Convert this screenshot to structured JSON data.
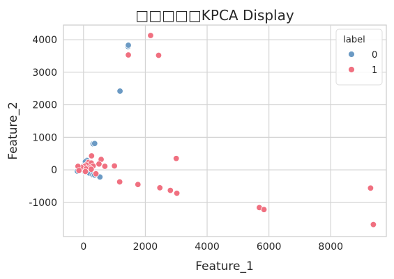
{
  "chart_data": {
    "type": "scatter",
    "title": "□□□□□KPCA Display",
    "xlabel": "Feature_1",
    "ylabel": "Feature_2",
    "xlim": [
      -650,
      9800
    ],
    "ylim": [
      -2050,
      4450
    ],
    "xticks": [
      0,
      2000,
      4000,
      6000,
      8000
    ],
    "yticks": [
      -1000,
      0,
      1000,
      2000,
      3000,
      4000
    ],
    "xtick_labels": [
      "0",
      "2000",
      "4000",
      "6000",
      "8000"
    ],
    "ytick_labels": [
      "-1000",
      "0",
      "1000",
      "2000",
      "3000",
      "4000"
    ],
    "grid": true,
    "legend": {
      "title": "label",
      "placement": "top-right"
    },
    "series": [
      {
        "name": "0",
        "color": "#6b9ac4",
        "points": [
          [
            1440,
            3790
          ],
          [
            1450,
            3830
          ],
          [
            1180,
            2420
          ],
          [
            310,
            800
          ],
          [
            360,
            810
          ],
          [
            110,
            290
          ],
          [
            60,
            250
          ],
          [
            0,
            120
          ],
          [
            -50,
            80
          ],
          [
            -150,
            40
          ],
          [
            -200,
            -40
          ],
          [
            40,
            -60
          ],
          [
            130,
            -80
          ],
          [
            190,
            -100
          ],
          [
            300,
            -150
          ],
          [
            360,
            -160
          ],
          [
            530,
            -220
          ],
          [
            240,
            60
          ]
        ]
      },
      {
        "name": "1",
        "color": "#f07080",
        "points": [
          [
            2170,
            4130
          ],
          [
            1450,
            3530
          ],
          [
            2430,
            3520
          ],
          [
            3000,
            350
          ],
          [
            260,
            430
          ],
          [
            570,
            320
          ],
          [
            160,
            230
          ],
          [
            250,
            210
          ],
          [
            500,
            180
          ],
          [
            90,
            150
          ],
          [
            310,
            120
          ],
          [
            690,
            110
          ],
          [
            1000,
            120
          ],
          [
            20,
            100
          ],
          [
            200,
            60
          ],
          [
            -80,
            80
          ],
          [
            80,
            30
          ],
          [
            -180,
            110
          ],
          [
            250,
            20
          ],
          [
            -150,
            -20
          ],
          [
            60,
            -50
          ],
          [
            400,
            -120
          ],
          [
            1170,
            -370
          ],
          [
            1760,
            -450
          ],
          [
            2470,
            -550
          ],
          [
            2810,
            -630
          ],
          [
            3020,
            -720
          ],
          [
            5690,
            -1160
          ],
          [
            5840,
            -1220
          ],
          [
            9290,
            -560
          ],
          [
            9380,
            -1680
          ]
        ]
      }
    ]
  }
}
